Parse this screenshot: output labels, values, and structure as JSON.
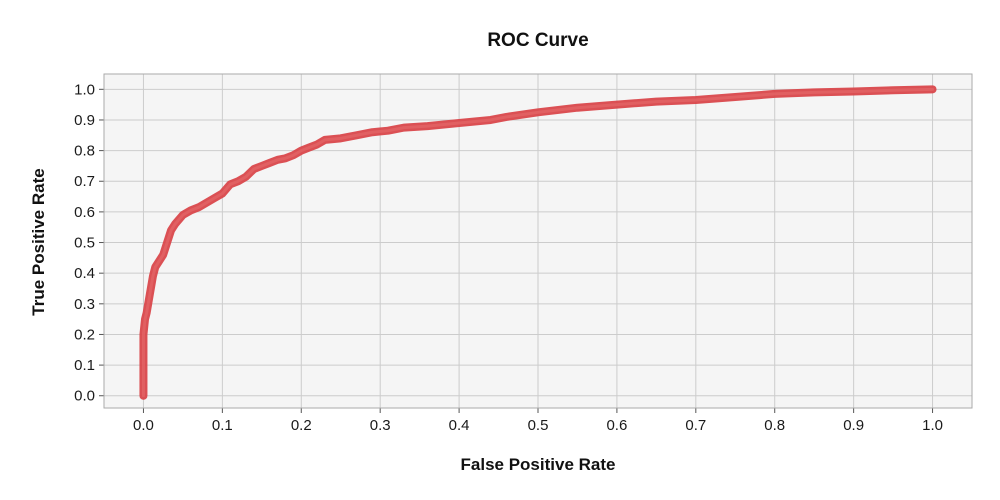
{
  "chart_data": {
    "type": "line",
    "title": "ROC Curve",
    "xlabel": "False Positive Rate",
    "ylabel": "True Positive Rate",
    "xlim": [
      -0.05,
      1.05
    ],
    "ylim": [
      -0.04,
      1.05
    ],
    "grid": true,
    "legend": "none",
    "x_ticks": [
      0.0,
      0.1,
      0.2,
      0.3,
      0.4,
      0.5,
      0.6,
      0.7,
      0.8,
      0.9,
      1.0
    ],
    "y_ticks": [
      0.0,
      0.1,
      0.2,
      0.3,
      0.4,
      0.5,
      0.6,
      0.7,
      0.8,
      0.9,
      1.0
    ],
    "x_tick_labels": [
      "0.0",
      "0.1",
      "0.2",
      "0.3",
      "0.4",
      "0.5",
      "0.6",
      "0.7",
      "0.8",
      "0.9",
      "1.0"
    ],
    "y_tick_labels": [
      "0.0",
      "0.1",
      "0.2",
      "0.3",
      "0.4",
      "0.5",
      "0.6",
      "0.7",
      "0.8",
      "0.9",
      "1.0"
    ],
    "colors": {
      "line": "#d9474b",
      "plot_background": "#f5f5f5",
      "grid": "#cccccc",
      "frame": "#aaaaaa"
    },
    "series": [
      {
        "name": "ROC",
        "x": [
          0.0,
          0.0,
          0.0,
          0.0,
          0.002,
          0.004,
          0.006,
          0.008,
          0.01,
          0.012,
          0.015,
          0.02,
          0.025,
          0.03,
          0.035,
          0.04,
          0.05,
          0.06,
          0.07,
          0.08,
          0.09,
          0.1,
          0.11,
          0.12,
          0.13,
          0.14,
          0.15,
          0.16,
          0.17,
          0.18,
          0.19,
          0.2,
          0.21,
          0.22,
          0.23,
          0.25,
          0.27,
          0.29,
          0.31,
          0.33,
          0.36,
          0.4,
          0.44,
          0.46,
          0.5,
          0.55,
          0.6,
          0.65,
          0.7,
          0.75,
          0.8,
          0.85,
          0.9,
          0.95,
          1.0
        ],
        "y": [
          0.0,
          0.06,
          0.14,
          0.2,
          0.25,
          0.27,
          0.3,
          0.33,
          0.36,
          0.39,
          0.42,
          0.44,
          0.46,
          0.5,
          0.54,
          0.56,
          0.59,
          0.605,
          0.615,
          0.63,
          0.645,
          0.66,
          0.69,
          0.7,
          0.715,
          0.74,
          0.75,
          0.76,
          0.77,
          0.775,
          0.785,
          0.8,
          0.81,
          0.82,
          0.835,
          0.84,
          0.85,
          0.86,
          0.865,
          0.875,
          0.88,
          0.89,
          0.9,
          0.91,
          0.925,
          0.94,
          0.95,
          0.96,
          0.965,
          0.975,
          0.985,
          0.99,
          0.993,
          0.997,
          1.0
        ]
      }
    ]
  }
}
